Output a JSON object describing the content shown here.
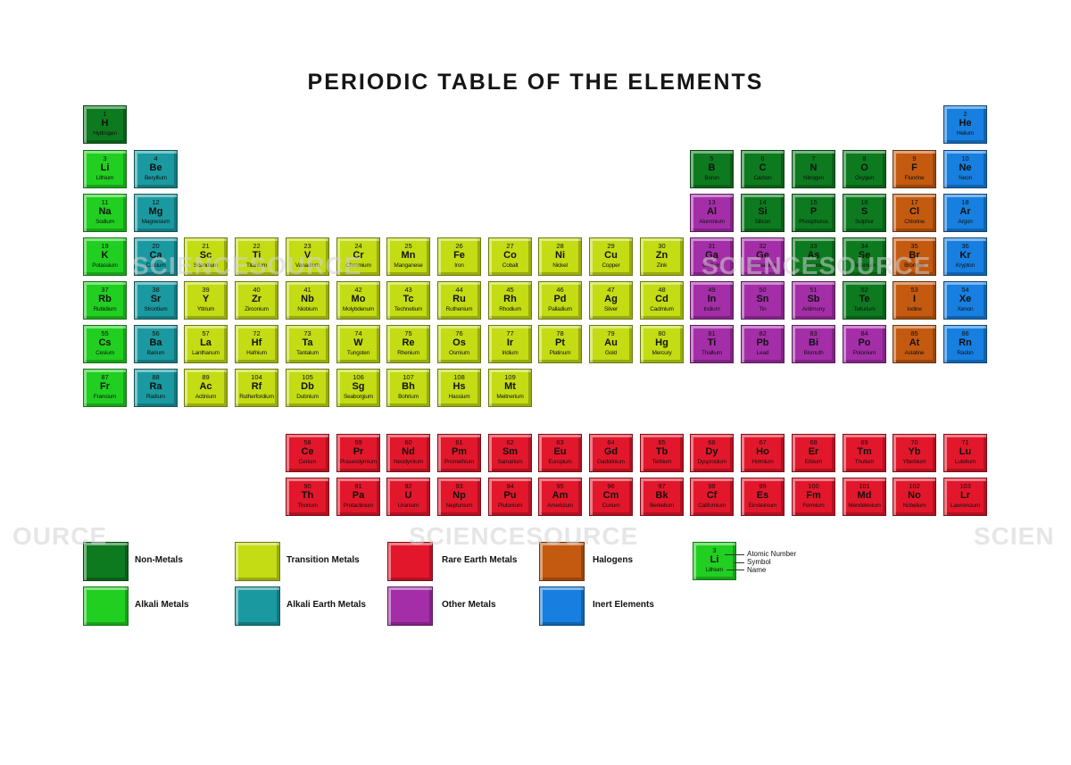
{
  "title": "PERIODIC TABLE OF THE ELEMENTS",
  "colors": {
    "nonmetal": "#0d7a1f",
    "alkali": "#21cf21",
    "alkaline": "#1a9aa0",
    "transition": "#c3dc14",
    "rare": "#e3172b",
    "halogen": "#c45a10",
    "other": "#a42ea8",
    "inert": "#167fe0"
  },
  "elements": [
    {
      "n": "1",
      "s": "H",
      "name": "Hydrogen",
      "c": "nonmetal"
    },
    {
      "n": "2",
      "s": "He",
      "name": "Helium",
      "c": "inert"
    },
    {
      "n": "3",
      "s": "Li",
      "name": "Lithium",
      "c": "alkali"
    },
    {
      "n": "4",
      "s": "Be",
      "name": "Beryllium",
      "c": "alkaline"
    },
    {
      "n": "5",
      "s": "B",
      "name": "Boron",
      "c": "nonmetal"
    },
    {
      "n": "6",
      "s": "C",
      "name": "Carbon",
      "c": "nonmetal"
    },
    {
      "n": "7",
      "s": "N",
      "name": "Nitrogen",
      "c": "nonmetal"
    },
    {
      "n": "8",
      "s": "O",
      "name": "Oxygen",
      "c": "nonmetal"
    },
    {
      "n": "9",
      "s": "F",
      "name": "Fluorine",
      "c": "halogen"
    },
    {
      "n": "10",
      "s": "Ne",
      "name": "Neon",
      "c": "inert"
    },
    {
      "n": "11",
      "s": "Na",
      "name": "Sodium",
      "c": "alkali"
    },
    {
      "n": "12",
      "s": "Mg",
      "name": "Magnesium",
      "c": "alkaline"
    },
    {
      "n": "13",
      "s": "Al",
      "name": "Aluminium",
      "c": "other"
    },
    {
      "n": "14",
      "s": "Si",
      "name": "Silicon",
      "c": "nonmetal"
    },
    {
      "n": "15",
      "s": "P",
      "name": "Phosphorus",
      "c": "nonmetal"
    },
    {
      "n": "16",
      "s": "S",
      "name": "Sulphur",
      "c": "nonmetal"
    },
    {
      "n": "17",
      "s": "Cl",
      "name": "Chlorine",
      "c": "halogen"
    },
    {
      "n": "18",
      "s": "Ar",
      "name": "Argon",
      "c": "inert"
    },
    {
      "n": "19",
      "s": "K",
      "name": "Potassium",
      "c": "alkali"
    },
    {
      "n": "20",
      "s": "Ca",
      "name": "Calcium",
      "c": "alkaline"
    },
    {
      "n": "21",
      "s": "Sc",
      "name": "Scandium",
      "c": "transition"
    },
    {
      "n": "22",
      "s": "Ti",
      "name": "Titanium",
      "c": "transition"
    },
    {
      "n": "23",
      "s": "V",
      "name": "Vanadium",
      "c": "transition"
    },
    {
      "n": "24",
      "s": "Cr",
      "name": "Chromium",
      "c": "transition"
    },
    {
      "n": "25",
      "s": "Mn",
      "name": "Manganese",
      "c": "transition"
    },
    {
      "n": "26",
      "s": "Fe",
      "name": "Iron",
      "c": "transition"
    },
    {
      "n": "27",
      "s": "Co",
      "name": "Cobalt",
      "c": "transition"
    },
    {
      "n": "28",
      "s": "Ni",
      "name": "Nickel",
      "c": "transition"
    },
    {
      "n": "29",
      "s": "Cu",
      "name": "Copper",
      "c": "transition"
    },
    {
      "n": "30",
      "s": "Zn",
      "name": "Zink",
      "c": "transition"
    },
    {
      "n": "31",
      "s": "Ga",
      "name": "Gallium",
      "c": "other"
    },
    {
      "n": "32",
      "s": "Ge",
      "name": "Germanium",
      "c": "other"
    },
    {
      "n": "33",
      "s": "As",
      "name": "Arsenic",
      "c": "nonmetal"
    },
    {
      "n": "34",
      "s": "Se",
      "name": "Selenium",
      "c": "nonmetal"
    },
    {
      "n": "35",
      "s": "Br",
      "name": "Bromine",
      "c": "halogen"
    },
    {
      "n": "36",
      "s": "Kr",
      "name": "Krypton",
      "c": "inert"
    },
    {
      "n": "37",
      "s": "Rb",
      "name": "Rubidium",
      "c": "alkali"
    },
    {
      "n": "38",
      "s": "Sr",
      "name": "Strontium",
      "c": "alkaline"
    },
    {
      "n": "39",
      "s": "Y",
      "name": "Yttrium",
      "c": "transition"
    },
    {
      "n": "40",
      "s": "Zr",
      "name": "Zirconium",
      "c": "transition"
    },
    {
      "n": "41",
      "s": "Nb",
      "name": "Niobium",
      "c": "transition"
    },
    {
      "n": "42",
      "s": "Mo",
      "name": "Molybdenum",
      "c": "transition"
    },
    {
      "n": "43",
      "s": "Tc",
      "name": "Technetium",
      "c": "transition"
    },
    {
      "n": "44",
      "s": "Ru",
      "name": "Ruthenium",
      "c": "transition"
    },
    {
      "n": "45",
      "s": "Rh",
      "name": "Rhodium",
      "c": "transition"
    },
    {
      "n": "46",
      "s": "Pd",
      "name": "Palladium",
      "c": "transition"
    },
    {
      "n": "47",
      "s": "Ag",
      "name": "Silver",
      "c": "transition"
    },
    {
      "n": "48",
      "s": "Cd",
      "name": "Cadmium",
      "c": "transition"
    },
    {
      "n": "49",
      "s": "In",
      "name": "Indium",
      "c": "other"
    },
    {
      "n": "50",
      "s": "Sn",
      "name": "Tin",
      "c": "other"
    },
    {
      "n": "51",
      "s": "Sb",
      "name": "Antimony",
      "c": "other"
    },
    {
      "n": "52",
      "s": "Te",
      "name": "Tellurium",
      "c": "nonmetal"
    },
    {
      "n": "53",
      "s": "I",
      "name": "Iodine",
      "c": "halogen"
    },
    {
      "n": "54",
      "s": "Xe",
      "name": "Xenon",
      "c": "inert"
    },
    {
      "n": "55",
      "s": "Cs",
      "name": "Cesium",
      "c": "alkali"
    },
    {
      "n": "56",
      "s": "Ba",
      "name": "Barium",
      "c": "alkaline"
    },
    {
      "n": "57",
      "s": "La",
      "name": "Lanthanum",
      "c": "transition"
    },
    {
      "n": "72",
      "s": "Hf",
      "name": "Hafnium",
      "c": "transition"
    },
    {
      "n": "73",
      "s": "Ta",
      "name": "Tantalum",
      "c": "transition"
    },
    {
      "n": "74",
      "s": "W",
      "name": "Tungsten",
      "c": "transition"
    },
    {
      "n": "75",
      "s": "Re",
      "name": "Rhenium",
      "c": "transition"
    },
    {
      "n": "76",
      "s": "Os",
      "name": "Osmium",
      "c": "transition"
    },
    {
      "n": "77",
      "s": "Ir",
      "name": "Iridium",
      "c": "transition"
    },
    {
      "n": "78",
      "s": "Pt",
      "name": "Platinum",
      "c": "transition"
    },
    {
      "n": "79",
      "s": "Au",
      "name": "Gold",
      "c": "transition"
    },
    {
      "n": "80",
      "s": "Hg",
      "name": "Mercury",
      "c": "transition"
    },
    {
      "n": "81",
      "s": "Ti",
      "name": "Thallium",
      "c": "other"
    },
    {
      "n": "82",
      "s": "Pb",
      "name": "Lead",
      "c": "other"
    },
    {
      "n": "83",
      "s": "Bi",
      "name": "Bismuth",
      "c": "other"
    },
    {
      "n": "84",
      "s": "Po",
      "name": "Polonium",
      "c": "other"
    },
    {
      "n": "85",
      "s": "At",
      "name": "Astatine",
      "c": "halogen"
    },
    {
      "n": "86",
      "s": "Rn",
      "name": "Radon",
      "c": "inert"
    },
    {
      "n": "87",
      "s": "Fr",
      "name": "Francium",
      "c": "alkali"
    },
    {
      "n": "88",
      "s": "Ra",
      "name": "Radium",
      "c": "alkaline"
    },
    {
      "n": "89",
      "s": "Ac",
      "name": "Actinium",
      "c": "transition"
    },
    {
      "n": "104",
      "s": "Rf",
      "name": "Rutherfordium",
      "c": "transition"
    },
    {
      "n": "105",
      "s": "Db",
      "name": "Dubnium",
      "c": "transition"
    },
    {
      "n": "106",
      "s": "Sg",
      "name": "Seaborgium",
      "c": "transition"
    },
    {
      "n": "107",
      "s": "Bh",
      "name": "Bohrium",
      "c": "transition"
    },
    {
      "n": "108",
      "s": "Hs",
      "name": "Hassium",
      "c": "transition"
    },
    {
      "n": "109",
      "s": "Mt",
      "name": "Meitnerium",
      "c": "transition"
    },
    {
      "n": "58",
      "s": "Ce",
      "name": "Cerium",
      "c": "rare"
    },
    {
      "n": "59",
      "s": "Pr",
      "name": "Praseodymium",
      "c": "rare"
    },
    {
      "n": "60",
      "s": "Nd",
      "name": "Neodymium",
      "c": "rare"
    },
    {
      "n": "61",
      "s": "Pm",
      "name": "Promethium",
      "c": "rare"
    },
    {
      "n": "62",
      "s": "Sm",
      "name": "Samarium",
      "c": "rare"
    },
    {
      "n": "63",
      "s": "Eu",
      "name": "Europium",
      "c": "rare"
    },
    {
      "n": "64",
      "s": "Gd",
      "name": "Gadolinium",
      "c": "rare"
    },
    {
      "n": "65",
      "s": "Tb",
      "name": "Terbium",
      "c": "rare"
    },
    {
      "n": "66",
      "s": "Dy",
      "name": "Dysprosium",
      "c": "rare"
    },
    {
      "n": "67",
      "s": "Ho",
      "name": "Holmium",
      "c": "rare"
    },
    {
      "n": "68",
      "s": "Er",
      "name": "Erbium",
      "c": "rare"
    },
    {
      "n": "69",
      "s": "Tm",
      "name": "Thulium",
      "c": "rare"
    },
    {
      "n": "70",
      "s": "Yb",
      "name": "Ytterbium",
      "c": "rare"
    },
    {
      "n": "71",
      "s": "Lu",
      "name": "Lutetium",
      "c": "rare"
    },
    {
      "n": "90",
      "s": "Th",
      "name": "Thorium",
      "c": "rare"
    },
    {
      "n": "91",
      "s": "Pa",
      "name": "Protactinium",
      "c": "rare"
    },
    {
      "n": "92",
      "s": "U",
      "name": "Uranium",
      "c": "rare"
    },
    {
      "n": "93",
      "s": "Np",
      "name": "Neptunium",
      "c": "rare"
    },
    {
      "n": "94",
      "s": "Pu",
      "name": "Plutonium",
      "c": "rare"
    },
    {
      "n": "95",
      "s": "Am",
      "name": "Americium",
      "c": "rare"
    },
    {
      "n": "96",
      "s": "Cm",
      "name": "Curium",
      "c": "rare"
    },
    {
      "n": "97",
      "s": "Bk",
      "name": "Berkelium",
      "c": "rare"
    },
    {
      "n": "98",
      "s": "Cf",
      "name": "Californium",
      "c": "rare"
    },
    {
      "n": "99",
      "s": "Es",
      "name": "Einsteinium",
      "c": "rare"
    },
    {
      "n": "100",
      "s": "Fm",
      "name": "Fermium",
      "c": "rare"
    },
    {
      "n": "101",
      "s": "Md",
      "name": "Mendelevium",
      "c": "rare"
    },
    {
      "n": "102",
      "s": "No",
      "name": "Nobelium",
      "c": "rare"
    },
    {
      "n": "103",
      "s": "Lr",
      "name": "Lawrencium",
      "c": "rare"
    }
  ],
  "legend": [
    {
      "label": "Non-Metals",
      "c": "nonmetal"
    },
    {
      "label": "Alkali Metals",
      "c": "alkali"
    },
    {
      "label": "Transition Metals",
      "c": "transition"
    },
    {
      "label": "Alkali Earth Metals",
      "c": "alkaline"
    },
    {
      "label": "Rare Earth Metals",
      "c": "rare"
    },
    {
      "label": "Other Metals",
      "c": "other"
    },
    {
      "label": "Halogens",
      "c": "halogen"
    },
    {
      "label": "Inert Elements",
      "c": "inert"
    }
  ],
  "key": {
    "number": "3",
    "symbol": "Li",
    "name": "Lithium",
    "color": "alkali",
    "atomic_number_label": "Atomic Number",
    "symbol_label": "Symbol",
    "name_label": "Name"
  },
  "watermark": {
    "text": "SCIENCESOURCE",
    "left_fragment": "OURCE",
    "right_fragment": "SCIEN"
  }
}
